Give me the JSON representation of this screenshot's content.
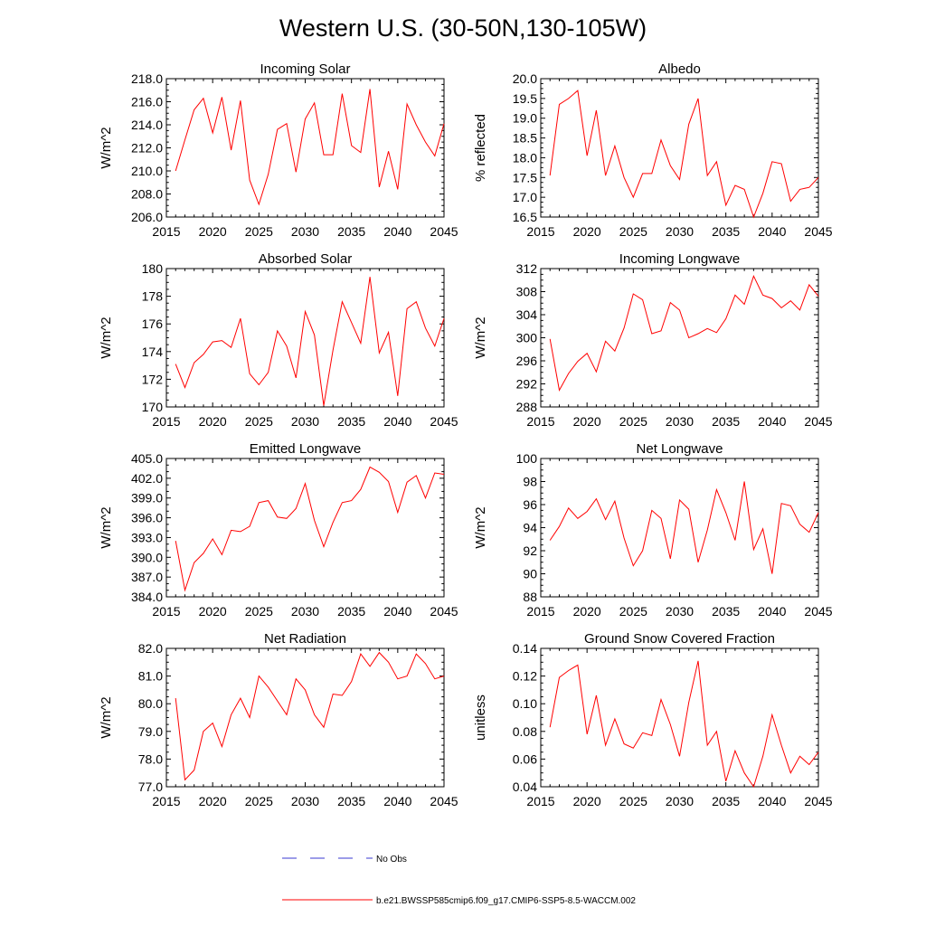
{
  "figure": {
    "title": "Western U.S. (30-50N,130-105W)",
    "legend": [
      {
        "label": "No Obs",
        "color": "#3a3ad0",
        "style": "dashed"
      },
      {
        "label": "b.e21.BWSSP585cmip6.f09_g17.CMIP6-SSP5-8.5-WACCM.002",
        "color": "#ff0000",
        "style": "solid"
      }
    ]
  },
  "chart_data": [
    {
      "type": "line",
      "title": "Incoming Solar",
      "ylabel": "W/m^2",
      "xlim": [
        2015,
        2045
      ],
      "ylim": [
        206.0,
        218.0
      ],
      "xticks": [
        2015,
        2020,
        2025,
        2030,
        2035,
        2040,
        2045
      ],
      "yticks": [
        "206.0",
        "208.0",
        "210.0",
        "212.0",
        "214.0",
        "216.0",
        "218.0"
      ],
      "color": "#ff0000",
      "x": [
        2016,
        2017,
        2018,
        2019,
        2020,
        2021,
        2022,
        2023,
        2024,
        2025,
        2026,
        2027,
        2028,
        2029,
        2030,
        2031,
        2032,
        2033,
        2034,
        2035,
        2036,
        2037,
        2038,
        2039,
        2040,
        2041,
        2042,
        2043,
        2044,
        2045
      ],
      "values": [
        210.0,
        212.7,
        215.3,
        216.3,
        213.3,
        216.4,
        211.8,
        216.1,
        209.2,
        207.1,
        209.7,
        213.6,
        214.1,
        209.9,
        214.5,
        215.9,
        211.4,
        211.4,
        216.7,
        212.2,
        211.6,
        217.1,
        208.6,
        211.7,
        208.4,
        215.8,
        214.0,
        212.5,
        211.3,
        214.1
      ]
    },
    {
      "type": "line",
      "title": "Albedo",
      "ylabel": "% reflected",
      "xlim": [
        2015,
        2045
      ],
      "ylim": [
        16.5,
        20.0
      ],
      "xticks": [
        2015,
        2020,
        2025,
        2030,
        2035,
        2040,
        2045
      ],
      "yticks": [
        "16.5",
        "17.0",
        "17.5",
        "18.0",
        "18.5",
        "19.0",
        "19.5",
        "20.0"
      ],
      "color": "#ff0000",
      "x": [
        2016,
        2017,
        2018,
        2019,
        2020,
        2021,
        2022,
        2023,
        2024,
        2025,
        2026,
        2027,
        2028,
        2029,
        2030,
        2031,
        2032,
        2033,
        2034,
        2035,
        2036,
        2037,
        2038,
        2039,
        2040,
        2041,
        2042,
        2043,
        2044,
        2045
      ],
      "values": [
        17.55,
        19.35,
        19.5,
        19.7,
        18.05,
        19.2,
        17.55,
        18.3,
        17.5,
        17.0,
        17.6,
        17.6,
        18.45,
        17.8,
        17.45,
        18.85,
        19.5,
        17.55,
        17.9,
        16.8,
        17.3,
        17.2,
        16.5,
        17.1,
        17.9,
        17.85,
        16.9,
        17.2,
        17.25,
        17.5
      ]
    },
    {
      "type": "line",
      "title": "Absorbed Solar",
      "ylabel": "W/m^2",
      "xlim": [
        2015,
        2045
      ],
      "ylim": [
        170,
        180
      ],
      "xticks": [
        2015,
        2020,
        2025,
        2030,
        2035,
        2040,
        2045
      ],
      "yticks": [
        "170",
        "172",
        "174",
        "176",
        "178",
        "180"
      ],
      "color": "#ff0000",
      "x": [
        2016,
        2017,
        2018,
        2019,
        2020,
        2021,
        2022,
        2023,
        2024,
        2025,
        2026,
        2027,
        2028,
        2029,
        2030,
        2031,
        2032,
        2033,
        2034,
        2035,
        2036,
        2037,
        2038,
        2039,
        2040,
        2041,
        2042,
        2043,
        2044,
        2045
      ],
      "values": [
        173.1,
        171.4,
        173.2,
        173.8,
        174.7,
        174.8,
        174.3,
        176.4,
        172.4,
        171.6,
        172.5,
        175.5,
        174.4,
        172.1,
        176.9,
        175.2,
        170.1,
        174.1,
        177.6,
        176.1,
        174.6,
        179.4,
        173.9,
        175.4,
        170.8,
        177.1,
        177.6,
        175.7,
        174.4,
        176.4
      ]
    },
    {
      "type": "line",
      "title": "Incoming Longwave",
      "ylabel": "W/m^2",
      "xlim": [
        2015,
        2045
      ],
      "ylim": [
        288,
        312
      ],
      "xticks": [
        2015,
        2020,
        2025,
        2030,
        2035,
        2040,
        2045
      ],
      "yticks": [
        "288",
        "292",
        "296",
        "300",
        "304",
        "308",
        "312"
      ],
      "color": "#ff0000",
      "x": [
        2016,
        2017,
        2018,
        2019,
        2020,
        2021,
        2022,
        2023,
        2024,
        2025,
        2026,
        2027,
        2028,
        2029,
        2030,
        2031,
        2032,
        2033,
        2034,
        2035,
        2036,
        2037,
        2038,
        2039,
        2040,
        2041,
        2042,
        2043,
        2044,
        2045
      ],
      "values": [
        299.8,
        290.9,
        293.8,
        295.9,
        297.3,
        294.1,
        299.4,
        297.7,
        301.7,
        307.6,
        306.6,
        300.7,
        301.2,
        306.1,
        304.8,
        300.0,
        300.7,
        301.6,
        300.9,
        303.3,
        307.4,
        305.8,
        310.7,
        307.4,
        306.8,
        305.2,
        306.4,
        304.8,
        309.2,
        307.2
      ]
    },
    {
      "type": "line",
      "title": "Emitted Longwave",
      "ylabel": "W/m^2",
      "xlim": [
        2015,
        2045
      ],
      "ylim": [
        384.0,
        405.0
      ],
      "xticks": [
        2015,
        2020,
        2025,
        2030,
        2035,
        2040,
        2045
      ],
      "yticks": [
        "384.0",
        "387.0",
        "390.0",
        "393.0",
        "396.0",
        "399.0",
        "402.0",
        "405.0"
      ],
      "color": "#ff0000",
      "x": [
        2016,
        2017,
        2018,
        2019,
        2020,
        2021,
        2022,
        2023,
        2024,
        2025,
        2026,
        2027,
        2028,
        2029,
        2030,
        2031,
        2032,
        2033,
        2034,
        2035,
        2036,
        2037,
        2038,
        2039,
        2040,
        2041,
        2042,
        2043,
        2044,
        2045
      ],
      "values": [
        392.5,
        385.0,
        389.2,
        390.6,
        392.8,
        390.4,
        394.1,
        393.9,
        394.7,
        398.3,
        398.6,
        396.1,
        395.9,
        397.4,
        401.2,
        395.6,
        391.6,
        395.3,
        398.3,
        398.6,
        400.3,
        403.7,
        402.9,
        401.5,
        396.8,
        401.4,
        402.4,
        399.0,
        402.8,
        402.6
      ]
    },
    {
      "type": "line",
      "title": "Net Longwave",
      "ylabel": "W/m^2",
      "xlim": [
        2015,
        2045
      ],
      "ylim": [
        88,
        100
      ],
      "xticks": [
        2015,
        2020,
        2025,
        2030,
        2035,
        2040,
        2045
      ],
      "yticks": [
        "88",
        "90",
        "92",
        "94",
        "96",
        "98",
        "100"
      ],
      "color": "#ff0000",
      "x": [
        2016,
        2017,
        2018,
        2019,
        2020,
        2021,
        2022,
        2023,
        2024,
        2025,
        2026,
        2027,
        2028,
        2029,
        2030,
        2031,
        2032,
        2033,
        2034,
        2035,
        2036,
        2037,
        2038,
        2039,
        2040,
        2041,
        2042,
        2043,
        2044,
        2045
      ],
      "values": [
        92.9,
        94.1,
        95.7,
        94.8,
        95.4,
        96.5,
        94.7,
        96.3,
        93.1,
        90.7,
        92.0,
        95.5,
        94.8,
        91.3,
        96.4,
        95.6,
        91.0,
        93.8,
        97.3,
        95.3,
        92.9,
        98.0,
        92.1,
        93.9,
        90.0,
        96.1,
        95.9,
        94.3,
        93.6,
        95.3
      ]
    },
    {
      "type": "line",
      "title": "Net Radiation",
      "ylabel": "W/m^2",
      "xlim": [
        2015,
        2045
      ],
      "ylim": [
        77.0,
        82.0
      ],
      "xticks": [
        2015,
        2020,
        2025,
        2030,
        2035,
        2040,
        2045
      ],
      "yticks": [
        "77.0",
        "78.0",
        "79.0",
        "80.0",
        "81.0",
        "82.0"
      ],
      "color": "#ff0000",
      "x": [
        2016,
        2017,
        2018,
        2019,
        2020,
        2021,
        2022,
        2023,
        2024,
        2025,
        2026,
        2027,
        2028,
        2029,
        2030,
        2031,
        2032,
        2033,
        2034,
        2035,
        2036,
        2037,
        2038,
        2039,
        2040,
        2041,
        2042,
        2043,
        2044,
        2045
      ],
      "values": [
        80.2,
        77.25,
        77.6,
        79.0,
        79.3,
        78.45,
        79.6,
        80.2,
        79.5,
        81.0,
        80.6,
        80.1,
        79.6,
        80.9,
        80.5,
        79.6,
        79.15,
        80.35,
        80.3,
        80.8,
        81.8,
        81.35,
        81.85,
        81.5,
        80.9,
        81.0,
        81.8,
        81.45,
        80.9,
        81.0
      ]
    },
    {
      "type": "line",
      "title": "Ground Snow Covered Fraction",
      "ylabel": "unitless",
      "xlim": [
        2015,
        2045
      ],
      "ylim": [
        0.04,
        0.14
      ],
      "xticks": [
        2015,
        2020,
        2025,
        2030,
        2035,
        2040,
        2045
      ],
      "yticks": [
        "0.04",
        "0.06",
        "0.08",
        "0.10",
        "0.12",
        "0.14"
      ],
      "color": "#ff0000",
      "x": [
        2016,
        2017,
        2018,
        2019,
        2020,
        2021,
        2022,
        2023,
        2024,
        2025,
        2026,
        2027,
        2028,
        2029,
        2030,
        2031,
        2032,
        2033,
        2034,
        2035,
        2036,
        2037,
        2038,
        2039,
        2040,
        2041,
        2042,
        2043,
        2044,
        2045
      ],
      "values": [
        0.083,
        0.119,
        0.124,
        0.128,
        0.078,
        0.106,
        0.07,
        0.089,
        0.071,
        0.068,
        0.079,
        0.077,
        0.103,
        0.085,
        0.062,
        0.101,
        0.131,
        0.07,
        0.08,
        0.044,
        0.066,
        0.05,
        0.04,
        0.062,
        0.092,
        0.07,
        0.05,
        0.062,
        0.056,
        0.065
      ]
    }
  ]
}
